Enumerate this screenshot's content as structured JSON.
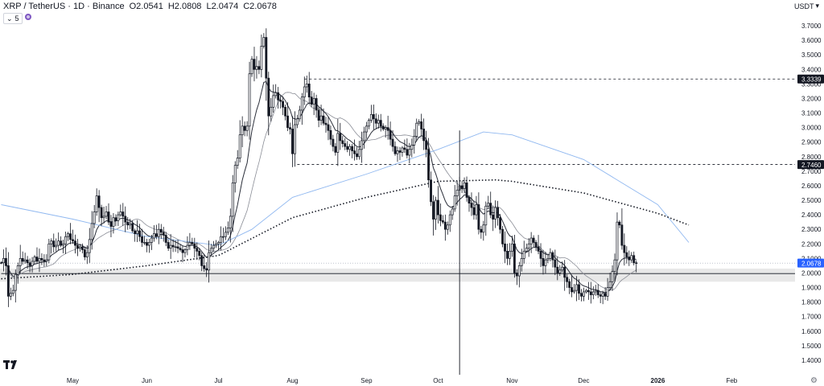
{
  "header": {
    "symbol": "XRP / TetherUS · 1D · Binance",
    "o_label": "O",
    "o_value": "2.0541",
    "h_label": "H",
    "h_value": "2.0808",
    "l_label": "L",
    "l_value": "2.0474",
    "c_label": "C",
    "c_value": "2.0678",
    "indicator_count": "5",
    "currency": "USDT",
    "chevron_icon": "chevron-down-icon"
  },
  "colors": {
    "up": "#131722",
    "down": "#131722",
    "sma_blue": "#90b8f0",
    "ma_gray": "#8a8d96",
    "ema_dark": "#2a2e39",
    "dotted": "#131722",
    "zone": "#e0e0e0",
    "label_bg": "#131722",
    "price_bg": "#2962ff"
  },
  "chart_data": {
    "type": "candlestick",
    "symbol": "XRP / TetherUS",
    "timeframe": "1D",
    "exchange": "Binance",
    "ylim": [
      1.3,
      3.8
    ],
    "y_ticks": [
      "1.4000",
      "1.5000",
      "1.6000",
      "1.7000",
      "1.8000",
      "1.9000",
      "2.0000",
      "2.1000",
      "2.2000",
      "2.3000",
      "2.4000",
      "2.5000",
      "2.6000",
      "2.7000",
      "2.8000",
      "2.9000",
      "3.0000",
      "3.1000",
      "3.2000",
      "3.3000",
      "3.4000",
      "3.5000",
      "3.6000",
      "3.7000"
    ],
    "x_labels": [
      "May",
      "Jun",
      "Jul",
      "Aug",
      "Sep",
      "Oct",
      "Nov",
      "Dec",
      "2026",
      "Feb"
    ],
    "x_label_dates": [
      "2025-05-01",
      "2025-06-01",
      "2025-07-01",
      "2025-08-01",
      "2025-09-01",
      "2025-10-01",
      "2025-11-01",
      "2025-12-01",
      "2026-01-01",
      "2026-02-01"
    ],
    "start_date": "2025-04-01",
    "last_date": "2026-01-14",
    "end_date": "2026-02-28",
    "closes": [
      2.07,
      2.1,
      2.05,
      1.84,
      1.86,
      1.88,
      1.99,
      2.05,
      2.1,
      2.08,
      2.09,
      2.07,
      2.05,
      2.08,
      2.11,
      2.08,
      2.1,
      2.09,
      2.08,
      2.09,
      2.2,
      2.22,
      2.18,
      2.19,
      2.22,
      2.19,
      2.2,
      2.25,
      2.27,
      2.23,
      2.22,
      2.19,
      2.17,
      2.18,
      2.16,
      2.11,
      2.14,
      2.23,
      2.34,
      2.42,
      2.53,
      2.45,
      2.38,
      2.39,
      2.42,
      2.35,
      2.32,
      2.38,
      2.36,
      2.4,
      2.42,
      2.39,
      2.35,
      2.33,
      2.34,
      2.29,
      2.27,
      2.29,
      2.25,
      2.21,
      2.21,
      2.19,
      2.21,
      2.24,
      2.27,
      2.25,
      2.3,
      2.28,
      2.26,
      2.21,
      2.17,
      2.19,
      2.18,
      2.18,
      2.17,
      2.16,
      2.14,
      2.16,
      2.19,
      2.21,
      2.2,
      2.17,
      2.15,
      2.12,
      2.05,
      2.03,
      2.02,
      2.14,
      2.17,
      2.19,
      2.2,
      2.21,
      2.25,
      2.25,
      2.28,
      2.31,
      2.39,
      2.62,
      2.74,
      2.79,
      2.95,
      3.01,
      2.98,
      3.01,
      3.37,
      3.47,
      3.4,
      3.42,
      3.4,
      3.56,
      3.62,
      3.34,
      3.08,
      3.14,
      3.22,
      3.24,
      3.19,
      3.18,
      3.14,
      3.08,
      3.0,
      2.99,
      2.82,
      3.02,
      3.06,
      3.12,
      3.21,
      3.28,
      3.3,
      3.21,
      3.16,
      3.2,
      3.12,
      3.05,
      3.08,
      3.03,
      3.02,
      2.98,
      2.92,
      2.87,
      2.83,
      2.96,
      2.91,
      2.89,
      2.87,
      2.85,
      2.87,
      2.84,
      2.82,
      2.8,
      2.85,
      2.91,
      2.97,
      3.01,
      3.05,
      3.09,
      3.06,
      3.03,
      3.05,
      3.01,
      2.99,
      3.0,
      2.98,
      2.92,
      2.87,
      2.82,
      2.84,
      2.83,
      2.86,
      2.85,
      2.81,
      2.85,
      2.88,
      2.94,
      3.03,
      3.04,
      2.99,
      2.91,
      2.85,
      2.64,
      2.49,
      2.37,
      2.5,
      2.4,
      2.36,
      2.35,
      2.3,
      2.33,
      2.4,
      2.44,
      2.53,
      2.57,
      2.6,
      2.58,
      2.62,
      2.52,
      2.48,
      2.45,
      2.4,
      2.47,
      2.3,
      2.28,
      2.33,
      2.46,
      2.48,
      2.4,
      2.37,
      2.45,
      2.38,
      2.3,
      2.2,
      2.15,
      2.1,
      2.15,
      2.2,
      2.0,
      1.98,
      2.05,
      2.1,
      2.15,
      2.17,
      2.2,
      2.24,
      2.21,
      2.18,
      2.15,
      2.1,
      2.05,
      2.09,
      2.1,
      2.14,
      2.09,
      2.04,
      2.0,
      2.02,
      2.04,
      1.97,
      1.94,
      1.9,
      1.87,
      1.88,
      1.92,
      1.86,
      1.84,
      1.87,
      1.88,
      1.87,
      1.85,
      1.87,
      1.88,
      1.85,
      1.84,
      1.86,
      1.84,
      1.9,
      1.94,
      2.01,
      2.09,
      2.35,
      2.33,
      2.19,
      2.14,
      2.11,
      2.09,
      2.12,
      2.07,
      2.0678
    ],
    "series": [
      {
        "name": "",
        "style": "blue-line",
        "points": [
          [
            "2025-04-01",
            2.47
          ],
          [
            "2025-05-01",
            2.37
          ],
          [
            "2025-06-01",
            2.25
          ],
          [
            "2025-07-01",
            2.19
          ],
          [
            "2025-07-15",
            2.3
          ],
          [
            "2025-08-01",
            2.52
          ],
          [
            "2025-09-01",
            2.68
          ],
          [
            "2025-10-01",
            2.85
          ],
          [
            "2025-10-20",
            2.97
          ],
          [
            "2025-11-01",
            2.95
          ],
          [
            "2025-12-01",
            2.78
          ],
          [
            "2026-01-01",
            2.47
          ],
          [
            "2026-01-14",
            2.21
          ]
        ]
      },
      {
        "name": "",
        "style": "dotted",
        "points": [
          [
            "2025-04-01",
            1.96
          ],
          [
            "2025-05-01",
            1.99
          ],
          [
            "2025-06-01",
            2.05
          ],
          [
            "2025-07-01",
            2.12
          ],
          [
            "2025-08-01",
            2.38
          ],
          [
            "2025-09-01",
            2.52
          ],
          [
            "2025-10-01",
            2.63
          ],
          [
            "2025-10-25",
            2.64
          ],
          [
            "2025-11-01",
            2.63
          ],
          [
            "2025-12-01",
            2.55
          ],
          [
            "2026-01-01",
            2.41
          ],
          [
            "2026-01-14",
            2.33
          ]
        ]
      }
    ],
    "zone": {
      "from": 1.94,
      "to": 2.03
    },
    "levels": [
      {
        "value": 3.3339,
        "label": "3.3339",
        "from_date": "2025-08-06"
      },
      {
        "value": 2.746,
        "label": "2.7460",
        "from_date": "2025-08-03"
      },
      {
        "value": 1.996,
        "label": "",
        "from_date": "2025-04-01"
      }
    ],
    "last_price": {
      "value": 2.0678,
      "label": "2.0678"
    },
    "events": [
      {
        "date": "2025-10-10",
        "low": 1.3,
        "high": 2.98
      }
    ],
    "grid": false,
    "legend": "top-left"
  }
}
